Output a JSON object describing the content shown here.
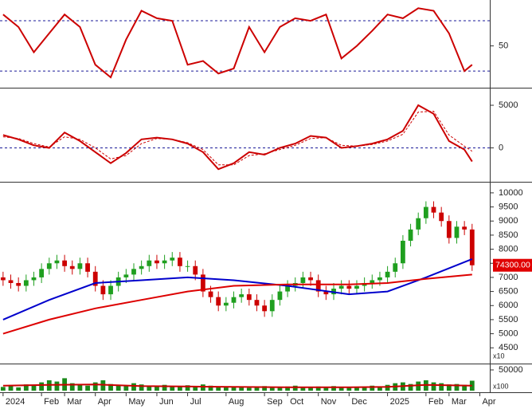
{
  "chart_data": [
    {
      "type": "line",
      "ylim": [
        18,
        84
      ],
      "yticks": [
        50
      ],
      "hlines": [
        30,
        70
      ],
      "xlim": [
        -0.4,
        63.3
      ],
      "x": [
        0,
        2,
        4,
        6,
        8,
        10,
        12,
        14,
        16,
        18,
        20,
        22,
        24,
        26,
        28,
        30,
        32,
        34,
        36,
        38,
        40,
        42,
        44,
        46,
        48,
        50,
        52,
        54,
        56,
        58,
        60,
        61
      ],
      "series": [
        {
          "color": "#cc0000",
          "values": [
            75,
            65,
            45,
            60,
            75,
            65,
            35,
            25,
            55,
            78,
            72,
            70,
            35,
            38,
            28,
            32,
            65,
            45,
            65,
            72,
            70,
            75,
            40,
            50,
            62,
            75,
            72,
            80,
            78,
            60,
            30,
            35
          ]
        }
      ]
    },
    {
      "type": "line",
      "ylim": [
        -3700,
        6500
      ],
      "yticks": [
        0,
        5000
      ],
      "hlines": [
        0
      ],
      "xlim": [
        -0.4,
        63.3
      ],
      "x": [
        0,
        2,
        4,
        6,
        8,
        10,
        12,
        14,
        16,
        18,
        20,
        22,
        24,
        26,
        28,
        30,
        32,
        34,
        36,
        38,
        40,
        42,
        44,
        46,
        48,
        50,
        52,
        54,
        56,
        58,
        60,
        61
      ],
      "series": [
        {
          "color": "#cc0000",
          "values": [
            1500,
            1000,
            300,
            0,
            1800,
            800,
            -500,
            -1800,
            -600,
            1000,
            1200,
            1000,
            500,
            -500,
            -2500,
            -1800,
            -500,
            -800,
            0,
            500,
            1400,
            1200,
            0,
            200,
            500,
            1000,
            2000,
            5000,
            4000,
            800,
            -200,
            -1600
          ]
        },
        {
          "color": "#cc0000",
          "dash": true,
          "values": [
            1300,
            1100,
            500,
            100,
            1300,
            1000,
            0,
            -1300,
            -900,
            500,
            1100,
            1000,
            600,
            -200,
            -2000,
            -2000,
            -900,
            -700,
            -200,
            300,
            1100,
            1200,
            300,
            200,
            400,
            800,
            1600,
            4200,
            4300,
            1500,
            200,
            -400
          ]
        }
      ]
    },
    {
      "type": "candlestick",
      "ylim": [
        3970,
        10280
      ],
      "yticks": [
        4500,
        5000,
        5500,
        6000,
        6500,
        7000,
        7500,
        8000,
        8500,
        9000,
        9500,
        10000
      ],
      "xlim": [
        -0.4,
        63.3
      ],
      "up_color": "#1f9f1f",
      "down_color": "#cc0000",
      "axis_note": "x10",
      "price_tag": "74300.00",
      "price_tag_color": "#e00000",
      "open": [
        7000,
        6900,
        6800,
        6700,
        6900,
        7000,
        7300,
        7500,
        7600,
        7400,
        7300,
        7500,
        7200,
        6700,
        6400,
        6700,
        7000,
        7100,
        7300,
        7400,
        7600,
        7500,
        7600,
        7700,
        7400,
        7400,
        7100,
        6500,
        6300,
        6000,
        6100,
        6300,
        6400,
        6200,
        6000,
        5800,
        6200,
        6500,
        6700,
        6800,
        7000,
        6900,
        6500,
        6400,
        6600,
        6700,
        6600,
        6700,
        6800,
        6900,
        7000,
        7200,
        7500,
        8300,
        8700,
        9100,
        9500,
        9300,
        9000,
        8400,
        8800,
        8700
      ],
      "high": [
        7200,
        7100,
        7000,
        7100,
        7200,
        7500,
        7700,
        7800,
        7800,
        7600,
        7700,
        7700,
        7400,
        6900,
        6900,
        7200,
        7300,
        7500,
        7600,
        7800,
        7800,
        7800,
        7900,
        7900,
        7600,
        7600,
        7300,
        6700,
        6500,
        6300,
        6500,
        6600,
        6600,
        6400,
        6200,
        6400,
        6700,
        6900,
        7000,
        7200,
        7200,
        7100,
        6700,
        6800,
        6900,
        6900,
        6900,
        7000,
        7100,
        7200,
        7400,
        7700,
        8500,
        8900,
        9300,
        9700,
        9700,
        9500,
        9200,
        9000,
        9000,
        8900
      ],
      "low": [
        6700,
        6600,
        6500,
        6500,
        6700,
        6800,
        7100,
        7300,
        7200,
        7100,
        7100,
        7000,
        6500,
        6200,
        6200,
        6500,
        6800,
        6900,
        7100,
        7200,
        7300,
        7300,
        7400,
        7200,
        7200,
        6900,
        6300,
        6100,
        5800,
        5800,
        5900,
        6100,
        6000,
        5800,
        5600,
        5600,
        6000,
        6300,
        6500,
        6600,
        6700,
        6300,
        6200,
        6200,
        6400,
        6400,
        6400,
        6500,
        6600,
        6700,
        6800,
        7000,
        7300,
        8100,
        8500,
        8900,
        9100,
        8800,
        8200,
        8200,
        8500,
        7230
      ],
      "close": [
        6900,
        6800,
        6700,
        6900,
        7000,
        7300,
        7500,
        7600,
        7400,
        7300,
        7500,
        7200,
        6700,
        6400,
        6700,
        7000,
        7100,
        7300,
        7400,
        7600,
        7500,
        7600,
        7700,
        7400,
        7400,
        7100,
        6500,
        6300,
        6000,
        6100,
        6300,
        6400,
        6200,
        6000,
        5800,
        6200,
        6500,
        6700,
        6800,
        7000,
        6900,
        6500,
        6400,
        6600,
        6700,
        6600,
        6700,
        6800,
        6900,
        7000,
        7200,
        7500,
        8300,
        8700,
        9100,
        9500,
        9300,
        9000,
        8400,
        8800,
        8700,
        7430
      ],
      "lines": [
        {
          "color": "#0000cc",
          "x": [
            0,
            6,
            12,
            18,
            24,
            30,
            37,
            45,
            50,
            55,
            61
          ],
          "values": [
            5500,
            6200,
            6800,
            6900,
            7000,
            6900,
            6700,
            6400,
            6500,
            7000,
            7650
          ]
        },
        {
          "color": "#dd0000",
          "x": [
            0,
            6,
            12,
            18,
            24,
            30,
            37,
            45,
            50,
            55,
            61
          ],
          "values": [
            5000,
            5500,
            5900,
            6200,
            6500,
            6700,
            6750,
            6750,
            6800,
            6950,
            7100
          ]
        }
      ]
    },
    {
      "type": "bar",
      "ylim": [
        0,
        61500
      ],
      "yticks": [
        50000
      ],
      "xlim": [
        -0.4,
        63.3
      ],
      "color": "#1a8a1a",
      "axis_note": "x100",
      "values": [
        9000,
        12000,
        8000,
        15000,
        14000,
        20000,
        25000,
        22000,
        30000,
        18000,
        15000,
        12000,
        20000,
        25000,
        16000,
        14000,
        12000,
        18000,
        15000,
        12000,
        10000,
        14000,
        11000,
        9000,
        13000,
        10000,
        15000,
        12000,
        8000,
        9000,
        10000,
        8000,
        7000,
        9000,
        11000,
        8000,
        9000,
        10000,
        12000,
        9000,
        8000,
        10000,
        9000,
        11000,
        8000,
        7000,
        9000,
        10000,
        12000,
        9000,
        14000,
        18000,
        20000,
        16000,
        22000,
        25000,
        20000,
        18000,
        15000,
        16000,
        14000,
        24000
      ],
      "line": {
        "color": "#cc0000",
        "x": [
          0,
          6,
          12,
          18,
          24,
          30,
          37,
          45,
          50,
          55,
          61
        ],
        "values": [
          12000,
          14000,
          15000,
          11000,
          10000,
          9000,
          8000,
          8000,
          9000,
          14000,
          12000
        ]
      },
      "xticks": [
        {
          "value": 0,
          "label": "2024"
        },
        {
          "value": 5,
          "label": "Feb"
        },
        {
          "value": 8,
          "label": "Mar"
        },
        {
          "value": 12,
          "label": "Apr"
        },
        {
          "value": 16,
          "label": "May"
        },
        {
          "value": 20,
          "label": "Jun"
        },
        {
          "value": 24,
          "label": "Jul"
        },
        {
          "value": 29,
          "label": "Aug"
        },
        {
          "value": 34,
          "label": "Sep"
        },
        {
          "value": 37,
          "label": "Oct"
        },
        {
          "value": 41,
          "label": "Nov"
        },
        {
          "value": 45,
          "label": "Dec"
        },
        {
          "value": 50,
          "label": "2025"
        },
        {
          "value": 55,
          "label": "Feb"
        },
        {
          "value": 58,
          "label": "Mar"
        },
        {
          "value": 62,
          "label": "Apr"
        }
      ]
    }
  ]
}
